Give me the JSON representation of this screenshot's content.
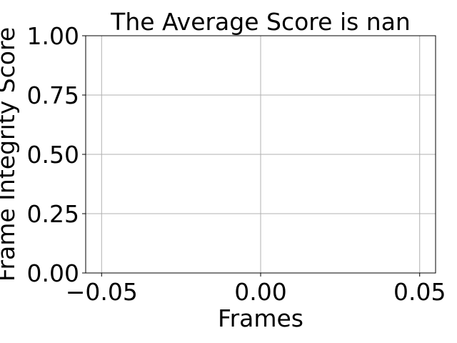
{
  "chart_data": {
    "type": "line",
    "title": "The Average Score is nan",
    "xlabel": "Frames",
    "ylabel": "Frame Integrity Score",
    "xlim": [
      -0.055,
      0.055
    ],
    "ylim": [
      0,
      1
    ],
    "xticks": [
      -0.05,
      0.0,
      0.05
    ],
    "xtick_labels": [
      "−0.05",
      "0.00",
      "0.05"
    ],
    "yticks": [
      0,
      0.25,
      0.5,
      0.75,
      1.0
    ],
    "ytick_labels": [
      "0.00",
      "0.25",
      "0.50",
      "0.75",
      "1.00"
    ],
    "grid": true,
    "series": []
  }
}
